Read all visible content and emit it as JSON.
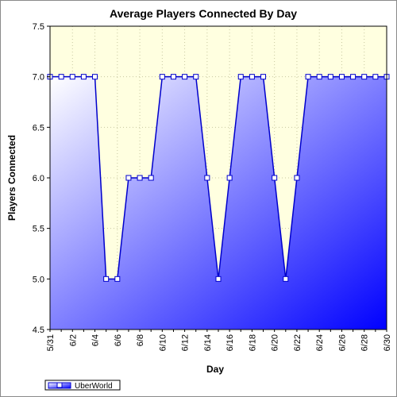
{
  "chart_data": {
    "type": "area",
    "title": "Average Players Connected By Day",
    "xlabel": "Day",
    "ylabel": "Players Connected",
    "ylim": [
      4.5,
      7.5
    ],
    "yticks": [
      "4.5",
      "5.0",
      "5.5",
      "6.0",
      "6.5",
      "7.0",
      "7.5"
    ],
    "xticks": [
      "5/31",
      "6/2",
      "6/4",
      "6/6",
      "6/8",
      "6/10",
      "6/12",
      "6/14",
      "6/16",
      "6/18",
      "6/20",
      "6/22",
      "6/24",
      "6/26",
      "6/28",
      "6/30"
    ],
    "grid": true,
    "legend_position": "bottom-left",
    "categories": [
      "5/31",
      "6/1",
      "6/2",
      "6/3",
      "6/4",
      "6/5",
      "6/6",
      "6/7",
      "6/8",
      "6/9",
      "6/10",
      "6/11",
      "6/12",
      "6/13",
      "6/14",
      "6/15",
      "6/16",
      "6/17",
      "6/18",
      "6/19",
      "6/20",
      "6/21",
      "6/22",
      "6/23",
      "6/24",
      "6/25",
      "6/26",
      "6/27",
      "6/28",
      "6/29",
      "6/30"
    ],
    "series": [
      {
        "name": "UberWorld",
        "color": "#0000ff",
        "values": [
          7,
          7,
          7,
          7,
          7,
          5,
          5,
          6,
          6,
          6,
          7,
          7,
          7,
          7,
          6,
          5,
          6,
          7,
          7,
          7,
          6,
          5,
          6,
          7,
          7,
          7,
          7,
          7,
          7,
          7,
          7
        ]
      }
    ],
    "colors": {
      "plot_background": "#ffffe0",
      "fill_light": "#ffffff",
      "fill_dark": "#0000ff",
      "line": "#0000cc",
      "grid": "#c8c8a0"
    }
  }
}
